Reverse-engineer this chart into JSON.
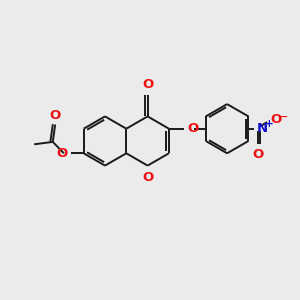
{
  "background_color": "#ebebeb",
  "bond_color": "#1a1a1a",
  "oxygen_color": "#ee1111",
  "nitrogen_color": "#1111cc",
  "bond_width": 1.4,
  "figsize": [
    3.0,
    3.0
  ],
  "dpi": 100,
  "xlim": [
    0,
    10
  ],
  "ylim": [
    0,
    10
  ]
}
